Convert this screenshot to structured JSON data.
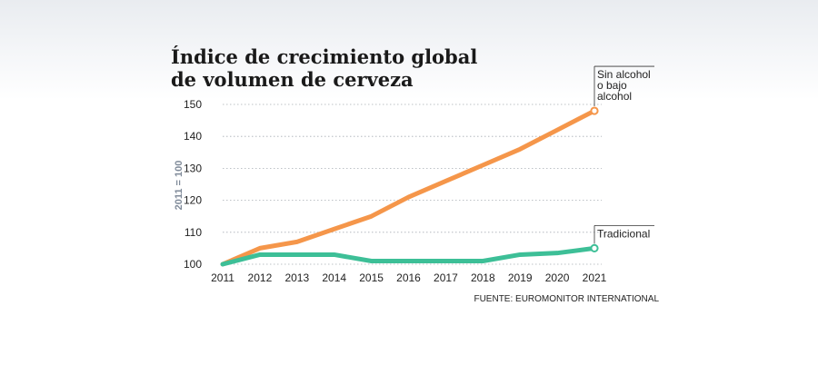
{
  "chart_data": {
    "type": "line",
    "title_lines": [
      "Índice de crecimiento global",
      "de volumen de cerveza"
    ],
    "ylabel": "2011 = 100",
    "xlabel": "",
    "ylim": [
      100,
      150
    ],
    "yticks": [
      100,
      110,
      120,
      130,
      140,
      150
    ],
    "categories": [
      "2011",
      "2012",
      "2013",
      "2014",
      "2015",
      "2016",
      "2017",
      "2018",
      "2019",
      "2020",
      "2021"
    ],
    "grid": true,
    "series": [
      {
        "name_lines": [
          "Sin alcohol",
          "o bajo",
          "alcohol"
        ],
        "color": "#f5964a",
        "values": [
          100,
          105,
          107,
          111,
          115,
          121,
          126,
          131,
          136,
          142,
          148
        ]
      },
      {
        "name_lines": [
          "Tradicional"
        ],
        "color": "#3dbf97",
        "values": [
          100,
          103,
          103,
          103,
          101,
          101,
          101,
          101,
          103,
          103.5,
          105
        ]
      }
    ],
    "source": "FUENTE: EUROMONITOR INTERNATIONAL"
  }
}
